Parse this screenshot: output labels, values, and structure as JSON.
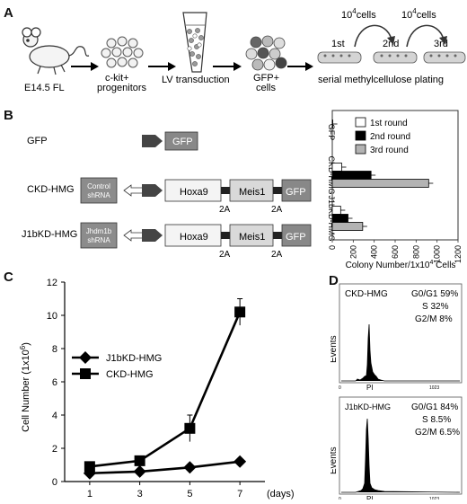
{
  "panel_labels": [
    "A",
    "B",
    "C",
    "D"
  ],
  "panel_a": {
    "steps": [
      "E14.5 FL",
      "c-kit+",
      "progenitors",
      "LV transduction",
      "GFP+",
      "cells",
      "serial methylcellulose plating"
    ],
    "plating": {
      "rounds": [
        "1st",
        "2nd",
        "3rd"
      ],
      "transfer_label_base": "10",
      "transfer_label_exp": "4",
      "transfer_label_unit": "cells"
    }
  },
  "panel_b": {
    "constructs": [
      {
        "name": "GFP",
        "shrna": "",
        "genes": [
          "GFP"
        ],
        "linkers": []
      },
      {
        "name": "CKD-HMG",
        "shrna": "Control shRNA",
        "genes": [
          "Hoxa9",
          "Meis1",
          "GFP"
        ],
        "linkers": [
          "2A",
          "2A"
        ]
      },
      {
        "name": "J1bKD-HMG",
        "shrna": "Jhdm1b shRNA",
        "genes": [
          "Hoxa9",
          "Meis1",
          "GFP"
        ],
        "linkers": [
          "2A",
          "2A"
        ]
      }
    ],
    "shrna_lines": {
      "control": [
        "Control",
        "shRNA"
      ],
      "jhdm1b": [
        "Jhdm1b",
        "shRNA"
      ]
    }
  },
  "chart_data": [
    {
      "id": "B",
      "type": "bar",
      "orientation": "horizontal",
      "categories": [
        "GFP",
        "CKD-HMG",
        "J1bKD-HMG"
      ],
      "series": [
        {
          "name": "1st round",
          "values": [
            5,
            90,
            80
          ],
          "color": "#ffffff"
        },
        {
          "name": "2nd round",
          "values": [
            0,
            370,
            150
          ],
          "color": "#000000"
        },
        {
          "name": "3rd round",
          "values": [
            0,
            920,
            290
          ],
          "color": "#b3b3b3"
        }
      ],
      "xlabel_base": "Colony Number/1x10",
      "xlabel_exp": "4",
      "xlabel_tail": " Cells",
      "xlim": [
        0,
        1200
      ],
      "xticks": [
        "0",
        "200",
        "400",
        "600",
        "800",
        "1000",
        "1200"
      ],
      "legend": "top-right"
    },
    {
      "id": "C",
      "type": "line",
      "x": [
        1,
        3,
        5,
        7
      ],
      "xticks": [
        "1",
        "3",
        "5",
        "7"
      ],
      "xunit": "(days)",
      "series": [
        {
          "name": "J1bKD-HMG",
          "marker": "diamond",
          "values": [
            0.5,
            0.6,
            0.85,
            1.2
          ]
        },
        {
          "name": "CKD-HMG",
          "marker": "square",
          "values": [
            0.9,
            1.25,
            3.2,
            10.2
          ]
        }
      ],
      "ylabel_base": "Cell Number (1x10",
      "ylabel_exp": "6",
      "ylabel_tail": ")",
      "ylim": [
        0,
        12
      ],
      "yticks": [
        "0",
        "2",
        "4",
        "6",
        "8",
        "10",
        "12"
      ],
      "legend": "upper-left"
    }
  ],
  "panel_d": {
    "histograms": [
      {
        "title": "CKD-HMG",
        "phases": [
          [
            "G0/G1",
            "59%"
          ],
          [
            "S",
            "32%"
          ],
          [
            "G2/M",
            "8%"
          ]
        ]
      },
      {
        "title": "J1bKD-HMG",
        "phases": [
          [
            "G0/G1",
            "84%"
          ],
          [
            "S",
            "8.5%"
          ],
          [
            "G2/M",
            "6.5%"
          ]
        ]
      }
    ],
    "ylabel": "Events",
    "xlabel": "PI",
    "xtick_end": "1023",
    "xtick_start": "0"
  }
}
